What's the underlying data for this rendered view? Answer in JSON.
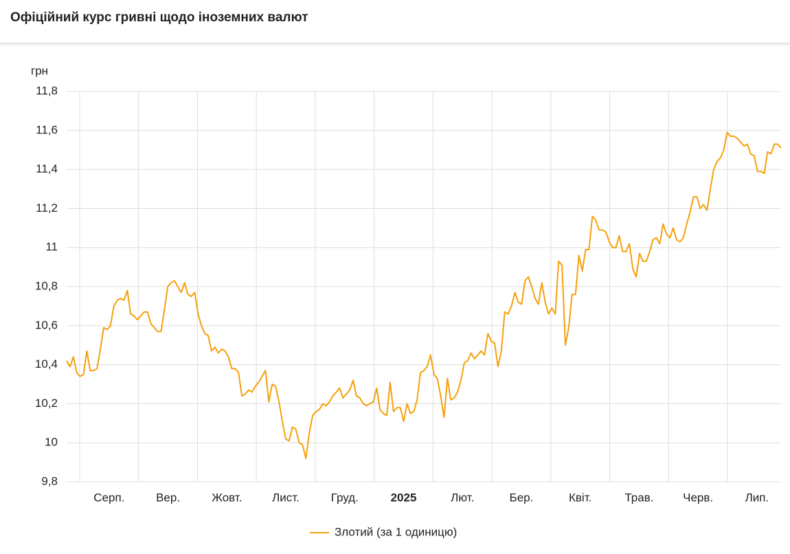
{
  "header": {
    "title": "Офіційний курс гривні щодо іноземних валют"
  },
  "chart_data": {
    "type": "line",
    "y_unit": "грн",
    "x_labels": [
      "Серп.",
      "Вер.",
      "Жовт.",
      "Лист.",
      "Груд.",
      "2025",
      "Лют.",
      "Бер.",
      "Квіт.",
      "Трав.",
      "Черв.",
      "Лип."
    ],
    "ylim": [
      9.8,
      11.8
    ],
    "yticks": [
      {
        "value": 9.8,
        "label": "9,8"
      },
      10,
      {
        "value": 10.2,
        "label": "10,2"
      },
      {
        "value": 10.4,
        "label": "10,4"
      },
      {
        "value": 10.6,
        "label": "10,6"
      },
      {
        "value": 10.8,
        "label": "10,8"
      },
      11,
      {
        "value": 11.2,
        "label": "11,2"
      },
      {
        "value": 11.4,
        "label": "11,4"
      },
      {
        "value": 11.6,
        "label": "11,6"
      },
      {
        "value": 11.8,
        "label": "11,8"
      }
    ],
    "grid": true,
    "legend": "bottom",
    "series": [
      {
        "name": "Злотий (за 1 одиницю)",
        "color": "#f5a00c",
        "values": [
          10.42,
          10.39,
          10.44,
          10.36,
          10.34,
          10.35,
          10.47,
          10.37,
          10.37,
          10.38,
          10.48,
          10.59,
          10.58,
          10.6,
          10.7,
          10.73,
          10.74,
          10.73,
          10.78,
          10.66,
          10.65,
          10.63,
          10.65,
          10.67,
          10.67,
          10.61,
          10.59,
          10.57,
          10.57,
          10.68,
          10.8,
          10.82,
          10.83,
          10.8,
          10.77,
          10.82,
          10.76,
          10.75,
          10.77,
          10.66,
          10.6,
          10.56,
          10.55,
          10.47,
          10.49,
          10.46,
          10.48,
          10.47,
          10.44,
          10.38,
          10.38,
          10.36,
          10.24,
          10.25,
          10.27,
          10.26,
          10.29,
          10.31,
          10.34,
          10.37,
          10.21,
          10.3,
          10.29,
          10.21,
          10.11,
          10.02,
          10.01,
          10.08,
          10.07,
          10.0,
          9.99,
          9.92,
          10.05,
          10.14,
          10.16,
          10.17,
          10.2,
          10.19,
          10.21,
          10.24,
          10.26,
          10.28,
          10.23,
          10.25,
          10.27,
          10.32,
          10.24,
          10.23,
          10.2,
          10.19,
          10.2,
          10.21,
          10.28,
          10.17,
          10.15,
          10.14,
          10.31,
          10.16,
          10.18,
          10.18,
          10.11,
          10.2,
          10.15,
          10.16,
          10.22,
          10.36,
          10.37,
          10.39,
          10.45,
          10.35,
          10.33,
          10.24,
          10.13,
          10.33,
          10.22,
          10.23,
          10.26,
          10.32,
          10.41,
          10.42,
          10.46,
          10.43,
          10.45,
          10.47,
          10.45,
          10.56,
          10.52,
          10.51,
          10.39,
          10.47,
          10.67,
          10.66,
          10.7,
          10.77,
          10.72,
          10.71,
          10.83,
          10.85,
          10.8,
          10.74,
          10.71,
          10.82,
          10.72,
          10.66,
          10.69,
          10.66,
          10.93,
          10.91,
          10.5,
          10.59,
          10.76,
          10.76,
          10.96,
          10.88,
          10.99,
          10.99,
          11.16,
          11.14,
          11.09,
          11.09,
          11.08,
          11.03,
          11.0,
          11.0,
          11.06,
          10.98,
          10.98,
          11.02,
          10.89,
          10.85,
          10.97,
          10.93,
          10.93,
          10.98,
          11.04,
          11.05,
          11.02,
          11.12,
          11.07,
          11.05,
          11.1,
          11.04,
          11.03,
          11.05,
          11.12,
          11.18,
          11.26,
          11.26,
          11.2,
          11.22,
          11.19,
          11.3,
          11.4,
          11.44,
          11.46,
          11.5,
          11.59,
          11.57,
          11.57,
          11.56,
          11.54,
          11.52,
          11.53,
          11.48,
          11.47,
          11.39,
          11.39,
          11.38,
          11.49,
          11.48,
          11.53,
          11.53,
          11.51
        ]
      }
    ]
  }
}
